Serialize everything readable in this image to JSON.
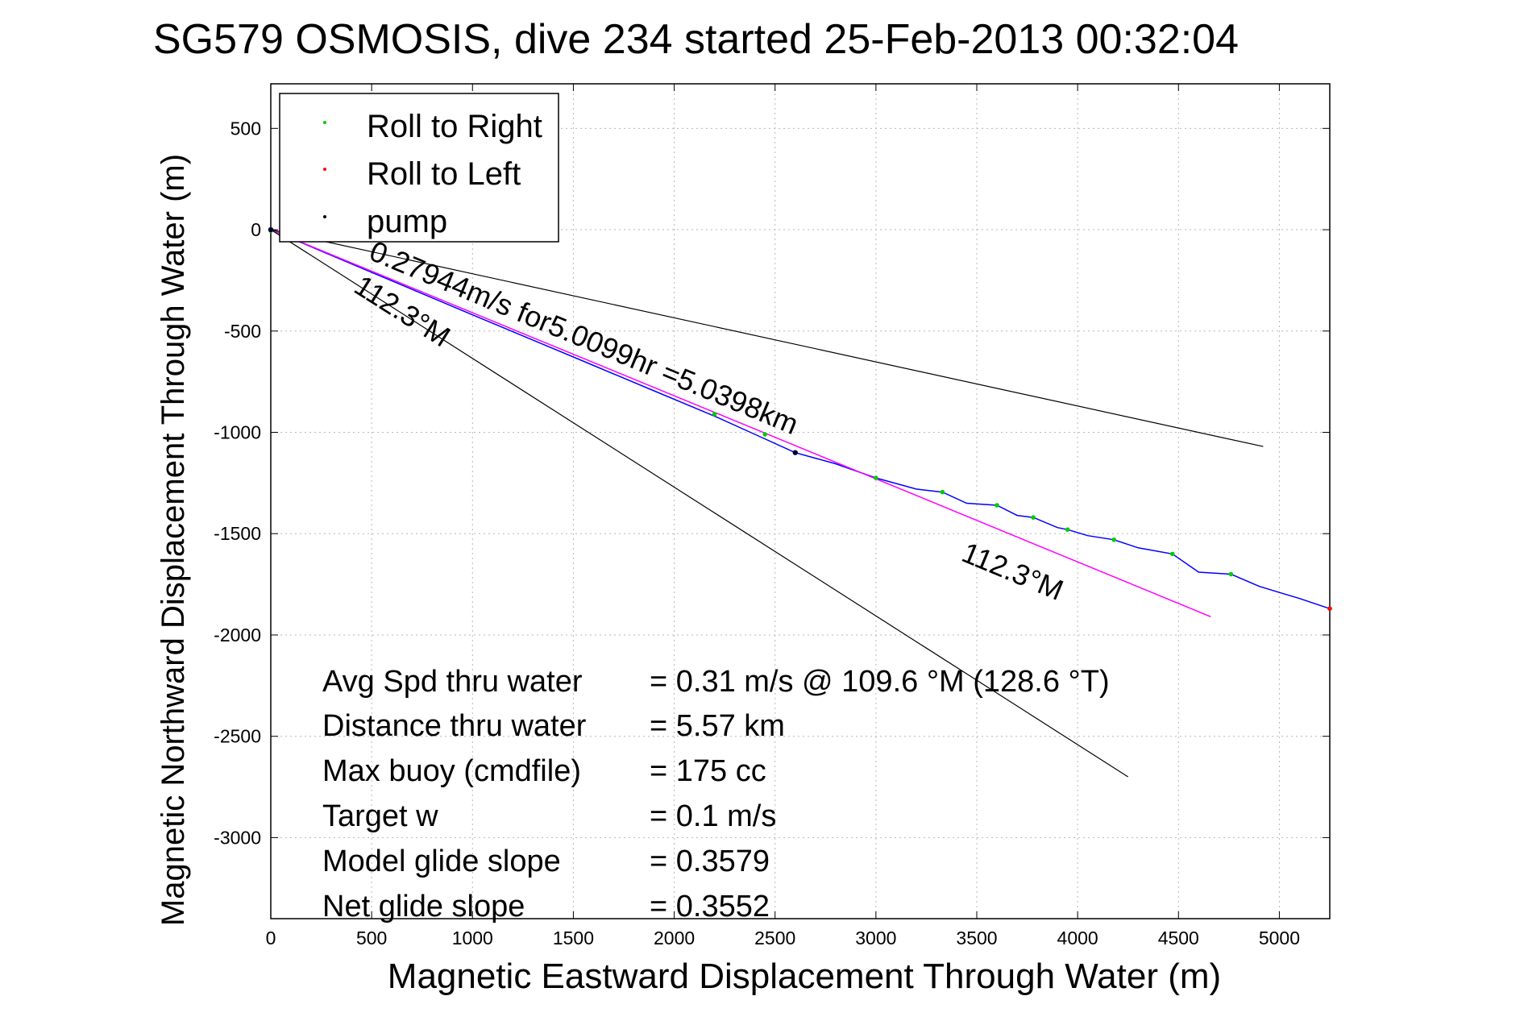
{
  "chart_data": {
    "type": "line",
    "title": "SG579 OSMOSIS, dive 234 started 25-Feb-2013 00:32:04",
    "xlabel": "Magnetic Eastward Displacement Through Water (m)",
    "ylabel": "Magnetic Northward Displacement Through Water (m)",
    "xlim": [
      0,
      5250
    ],
    "ylim": [
      -3400,
      720
    ],
    "grid": true,
    "legend_position": "top-left",
    "xticks": [
      0,
      500,
      1000,
      1500,
      2000,
      2500,
      3000,
      3500,
      4000,
      4500,
      5000
    ],
    "yticks": [
      500,
      0,
      -500,
      -1000,
      -1500,
      -2000,
      -2500,
      -3000
    ],
    "xtick_labels": [
      "0",
      "500",
      "1000",
      "1500",
      "2000",
      "2500",
      "3000",
      "3500",
      "4000",
      "4500",
      "5000"
    ],
    "ytick_labels": [
      "500",
      "0",
      "-500",
      "-1000",
      "-1500",
      "-2000",
      "-2500",
      "-3000"
    ],
    "legend": [
      {
        "name": "Roll to Right",
        "color": "#00cc00"
      },
      {
        "name": "Roll to Left",
        "color": "#ff0000"
      },
      {
        "name": "pump",
        "color": "#000000"
      }
    ],
    "series": [
      {
        "style": "track",
        "color": "#0000ff",
        "x": [
          0,
          250,
          500,
          750,
          1000,
          1300,
          1600,
          1900,
          2200,
          2400,
          2600,
          2800,
          3000,
          3200,
          3330,
          3450,
          3600,
          3700,
          3780,
          3900,
          3950,
          4050,
          4180,
          4300,
          4470,
          4600,
          4760,
          4900,
          5000,
          5100,
          5250
        ],
        "y": [
          0,
          -105,
          -210,
          -315,
          -420,
          -545,
          -670,
          -795,
          -920,
          -1010,
          -1100,
          -1155,
          -1225,
          -1280,
          -1295,
          -1350,
          -1360,
          -1410,
          -1420,
          -1470,
          -1480,
          -1510,
          -1530,
          -1570,
          -1600,
          -1690,
          -1700,
          -1760,
          -1790,
          -1820,
          -1870
        ]
      },
      {
        "style": "projection",
        "color": "#ff00ff",
        "x": [
          0,
          4660
        ],
        "y": [
          0,
          -1910
        ]
      },
      {
        "style": "heading-line",
        "color": "#000000",
        "x": [
          0,
          4920
        ],
        "y": [
          0,
          -1070
        ]
      },
      {
        "style": "heading-line",
        "color": "#000000",
        "x": [
          0,
          4250
        ],
        "y": [
          0,
          -2700
        ]
      }
    ],
    "roll_right_points": {
      "x": [
        0,
        2200,
        2450,
        3000,
        3330,
        3600,
        3780,
        3950,
        4180,
        4470,
        4760
      ],
      "y": [
        -5,
        -910,
        -1010,
        -1225,
        -1295,
        -1360,
        -1420,
        -1480,
        -1530,
        -1600,
        -1700
      ]
    },
    "roll_left_points": {
      "x": [
        5250
      ],
      "y": [
        -1870
      ]
    },
    "pump_points": {
      "x": [
        0,
        2600
      ],
      "y": [
        0,
        -1100
      ]
    },
    "annotations": [
      {
        "text": "0.27944m/s for5.0099hr =5.0398km"
      },
      {
        "text": "112.3°M"
      },
      {
        "text": "112.3°M"
      }
    ],
    "stats": [
      {
        "label": "Avg Spd thru water",
        "value": "=  0.31 m/s @ 109.6 °M (128.6 °T)"
      },
      {
        "label": "Distance thru water",
        "value": "=  5.57 km"
      },
      {
        "label": "Max buoy (cmdfile)",
        "value": "= 175 cc"
      },
      {
        "label": "Target w",
        "value": "= 0.1 m/s"
      },
      {
        "label": "Model glide slope",
        "value": "= 0.3579"
      },
      {
        "label": "Net glide slope",
        "value": "= 0.3552"
      }
    ]
  }
}
